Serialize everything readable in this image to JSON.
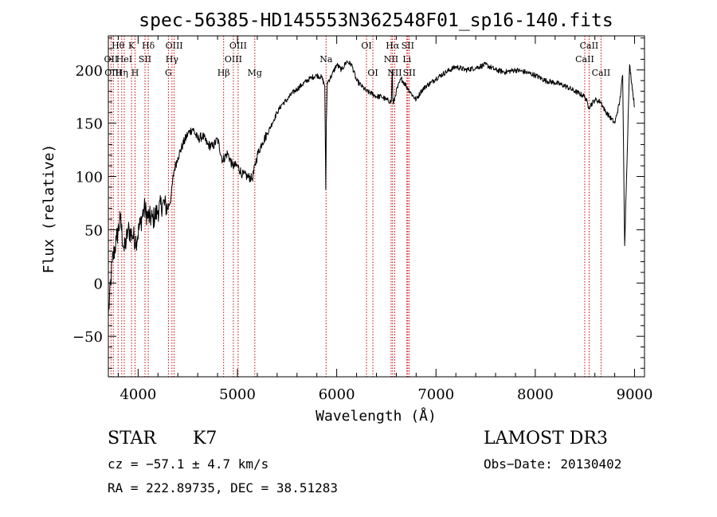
{
  "chart_data": {
    "type": "line",
    "title": "spec-56385-HD145553N362548F01_sp16-140.fits",
    "xlabel": "Wavelength (Å)",
    "ylabel": "Flux (relative)",
    "xlim": [
      3700,
      9100
    ],
    "ylim": [
      -88,
      232
    ],
    "xticks": [
      4000,
      5000,
      6000,
      7000,
      8000,
      9000
    ],
    "yticks": [
      -50,
      0,
      50,
      100,
      150,
      200
    ],
    "grid": false,
    "series": [
      {
        "color": "#000000",
        "x": [
          3700,
          3740,
          3780,
          3820,
          3860,
          3900,
          3940,
          3980,
          4020,
          4060,
          4100,
          4150,
          4200,
          4250,
          4300,
          4330,
          4360,
          4400,
          4450,
          4500,
          4550,
          4600,
          4650,
          4700,
          4750,
          4800,
          4850,
          4900,
          4950,
          5000,
          5050,
          5100,
          5150,
          5200,
          5250,
          5300,
          5350,
          5400,
          5450,
          5500,
          5550,
          5600,
          5650,
          5700,
          5750,
          5800,
          5850,
          5880,
          5890,
          5895,
          5905,
          5950,
          6000,
          6050,
          6100,
          6150,
          6200,
          6250,
          6300,
          6350,
          6400,
          6450,
          6500,
          6550,
          6560,
          6565,
          6570,
          6600,
          6650,
          6700,
          6750,
          6800,
          6850,
          6900,
          6950,
          7000,
          7100,
          7200,
          7300,
          7400,
          7500,
          7600,
          7700,
          7800,
          7900,
          8000,
          8100,
          8200,
          8300,
          8400,
          8500,
          8540,
          8600,
          8660,
          8700,
          8800,
          8850,
          8880,
          8900,
          8950,
          9000
        ],
        "y": [
          -30,
          20,
          40,
          60,
          30,
          50,
          45,
          40,
          55,
          70,
          62,
          60,
          68,
          75,
          70,
          80,
          105,
          118,
          130,
          140,
          145,
          135,
          138,
          130,
          128,
          135,
          115,
          122,
          110,
          110,
          102,
          100,
          98,
          120,
          132,
          140,
          150,
          160,
          168,
          172,
          178,
          182,
          186,
          190,
          193,
          195,
          193,
          185,
          88,
          150,
          188,
          195,
          205,
          200,
          208,
          205,
          190,
          185,
          180,
          178,
          175,
          175,
          172,
          170,
          200,
          172,
          168,
          180,
          192,
          185,
          178,
          172,
          180,
          185,
          188,
          192,
          198,
          203,
          200,
          202,
          205,
          200,
          198,
          200,
          198,
          195,
          190,
          188,
          185,
          180,
          175,
          165,
          172,
          170,
          162,
          150,
          170,
          195,
          35,
          205,
          165
        ]
      }
    ],
    "spectral_lines": [
      {
        "label": "Hθ",
        "x": 3798,
        "tier": 1,
        "drawn": true
      },
      {
        "label": "OII",
        "x": 3727,
        "tier": 2,
        "drawn": true
      },
      {
        "label": "OIII",
        "x": 3750,
        "tier": 3,
        "drawn": true
      },
      {
        "label": "K",
        "x": 3934,
        "tier": 1,
        "drawn": true
      },
      {
        "label": "HeI",
        "x": 3860,
        "tier": 2,
        "drawn": true
      },
      {
        "label": "Hη",
        "x": 3835,
        "tier": 3,
        "drawn": true
      },
      {
        "label": "Hδ",
        "x": 4102,
        "tier": 1,
        "drawn": true
      },
      {
        "label": "SII",
        "x": 4069,
        "tier": 2,
        "drawn": true
      },
      {
        "label": "H",
        "x": 3969,
        "tier": 3,
        "drawn": true
      },
      {
        "label": "OIII",
        "x": 4363,
        "tier": 1,
        "drawn": true
      },
      {
        "label": "Hγ",
        "x": 4341,
        "tier": 2,
        "drawn": true
      },
      {
        "label": "G",
        "x": 4305,
        "tier": 3,
        "drawn": true
      },
      {
        "label": "OIII",
        "x": 5007,
        "tier": 1,
        "drawn": true
      },
      {
        "label": "OIII",
        "x": 4959,
        "tier": 2,
        "drawn": true
      },
      {
        "label": "Hβ",
        "x": 4861,
        "tier": 3,
        "drawn": true
      },
      {
        "label": "Mg",
        "x": 5175,
        "tier": 3,
        "drawn": true
      },
      {
        "label": "Na",
        "x": 5893,
        "tier": 2,
        "drawn": true
      },
      {
        "label": "OI",
        "x": 6300,
        "tier": 1,
        "drawn": true
      },
      {
        "label": "OI",
        "x": 6364,
        "tier": 3,
        "drawn": true
      },
      {
        "label": "Hα",
        "x": 6563,
        "tier": 1,
        "drawn": true
      },
      {
        "label": "SII",
        "x": 6716,
        "tier": 1,
        "drawn": true
      },
      {
        "label": "NII",
        "x": 6548,
        "tier": 2,
        "drawn": true
      },
      {
        "label": "NII",
        "x": 6584,
        "tier": 3,
        "drawn": true
      },
      {
        "label": "SII",
        "x": 6731,
        "tier": 3,
        "drawn": true
      },
      {
        "label": "Li",
        "x": 6707,
        "tier": 2,
        "drawn": true
      },
      {
        "label": "CaII",
        "x": 8542,
        "tier": 1,
        "drawn": true
      },
      {
        "label": "CaII",
        "x": 8498,
        "tier": 2,
        "drawn": true
      },
      {
        "label": "CaII",
        "x": 8662,
        "tier": 3,
        "drawn": true
      }
    ],
    "line_marker_color": "#cc0000"
  },
  "footer": {
    "class_label": "STAR",
    "subclass": "K7",
    "survey": "LAMOST DR3",
    "cz": "cz = −57.1 ± 4.7 km/s",
    "obs_date": "Obs−Date: 20130402",
    "coords": "RA = 222.89735, DEC =  38.51283"
  }
}
